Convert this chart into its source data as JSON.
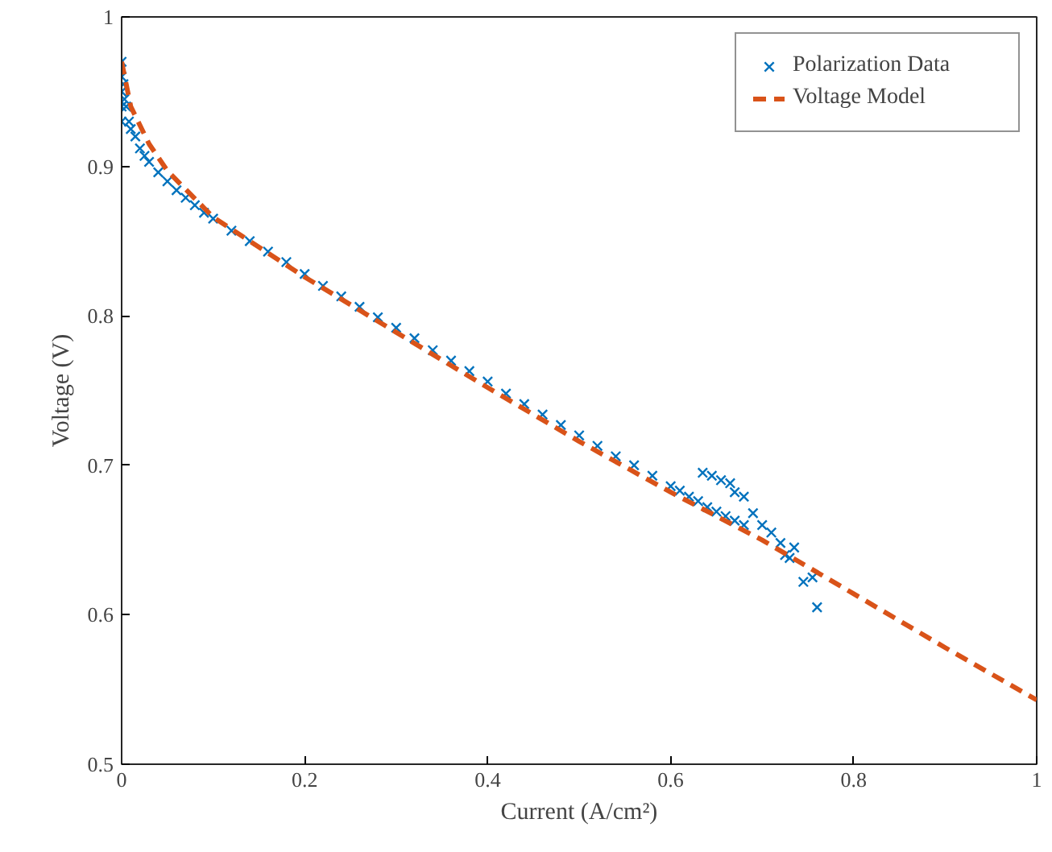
{
  "chart_data": {
    "type": "scatter",
    "xlabel": "Current (A/cm²)",
    "ylabel": "Voltage (V)",
    "xlim": [
      0,
      1
    ],
    "ylim": [
      0.5,
      1
    ],
    "xticks": [
      0,
      0.2,
      0.4,
      0.6,
      0.8,
      1
    ],
    "yticks": [
      0.5,
      0.6,
      0.7,
      0.8,
      0.9,
      1
    ],
    "grid": false,
    "legend": "top right",
    "series": [
      {
        "name": "Polarization Data",
        "marker": "cross",
        "color": "#0072bd",
        "x": [
          0.0,
          0.0,
          0.0,
          0.0,
          0.0,
          0.002,
          0.003,
          0.005,
          0.008,
          0.01,
          0.015,
          0.02,
          0.025,
          0.03,
          0.04,
          0.05,
          0.06,
          0.07,
          0.08,
          0.09,
          0.1,
          0.12,
          0.14,
          0.16,
          0.18,
          0.2,
          0.22,
          0.24,
          0.26,
          0.28,
          0.3,
          0.32,
          0.34,
          0.36,
          0.38,
          0.4,
          0.42,
          0.44,
          0.46,
          0.48,
          0.5,
          0.52,
          0.54,
          0.56,
          0.58,
          0.6,
          0.61,
          0.62,
          0.63,
          0.64,
          0.65,
          0.66,
          0.67,
          0.68,
          0.635,
          0.645,
          0.655,
          0.665,
          0.67,
          0.68,
          0.69,
          0.7,
          0.71,
          0.72,
          0.725,
          0.73,
          0.735,
          0.745,
          0.755,
          0.76
        ],
        "values": [
          0.97,
          0.96,
          0.95,
          0.94,
          0.93,
          0.955,
          0.945,
          0.94,
          0.93,
          0.925,
          0.92,
          0.912,
          0.907,
          0.903,
          0.896,
          0.89,
          0.884,
          0.879,
          0.874,
          0.869,
          0.865,
          0.857,
          0.85,
          0.843,
          0.836,
          0.828,
          0.82,
          0.813,
          0.806,
          0.799,
          0.792,
          0.785,
          0.777,
          0.77,
          0.763,
          0.756,
          0.748,
          0.741,
          0.734,
          0.727,
          0.72,
          0.713,
          0.706,
          0.7,
          0.693,
          0.686,
          0.683,
          0.679,
          0.676,
          0.672,
          0.669,
          0.666,
          0.663,
          0.66,
          0.695,
          0.693,
          0.69,
          0.688,
          0.682,
          0.679,
          0.668,
          0.66,
          0.655,
          0.648,
          0.64,
          0.638,
          0.645,
          0.622,
          0.625,
          0.605
        ]
      },
      {
        "name": "Voltage Model",
        "type": "line",
        "line_style": "dashed",
        "marker": "none",
        "color": "#d95319",
        "x": [
          0,
          0.01,
          0.03,
          0.05,
          0.1,
          0.2,
          0.3,
          0.4,
          0.5,
          0.6,
          0.7,
          0.75,
          0.8,
          0.9,
          1.0
        ],
        "values": [
          0.97,
          0.94,
          0.915,
          0.897,
          0.866,
          0.826,
          0.789,
          0.752,
          0.716,
          0.682,
          0.65,
          0.632,
          0.614,
          0.578,
          0.543
        ]
      }
    ]
  }
}
